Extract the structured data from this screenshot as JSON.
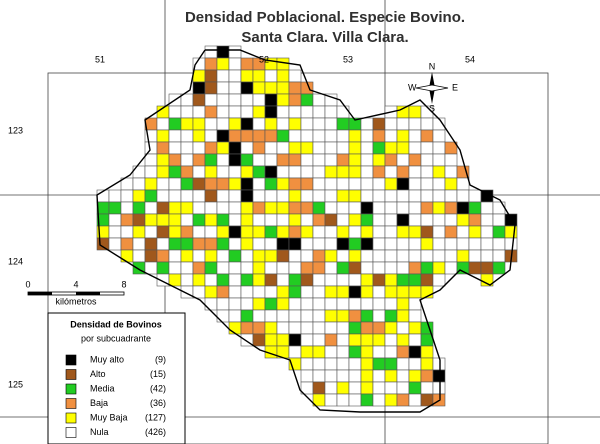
{
  "title": [
    "Densidad Poblacional.  Especie Bovino.",
    "Santa Clara. Villa Clara."
  ],
  "grid_labels": {
    "top": [
      "51",
      "52",
      "53",
      "54"
    ],
    "left": [
      "123",
      "124",
      "125"
    ]
  },
  "scale": {
    "ticks": [
      "0",
      "4",
      "8"
    ],
    "unit": "kilómetros"
  },
  "compass": {
    "n": "N",
    "s": "S",
    "e": "E",
    "w": "W"
  },
  "legend": {
    "title": "Densidad de Bovinos",
    "subtitle": "por subcuadrante",
    "items": [
      {
        "label": "Muy alto",
        "count": "(9)",
        "color": "#000000"
      },
      {
        "label": "Alto",
        "count": "(15)",
        "color": "#a0581c"
      },
      {
        "label": "Media",
        "count": "(42)",
        "color": "#22cc22"
      },
      {
        "label": "Baja",
        "count": "(36)",
        "color": "#f09040"
      },
      {
        "label": "Muy Baja",
        "count": "(127)",
        "color": "#ffff00"
      },
      {
        "label": "Nula",
        "count": "(426)",
        "color": "#ffffff"
      }
    ]
  }
}
